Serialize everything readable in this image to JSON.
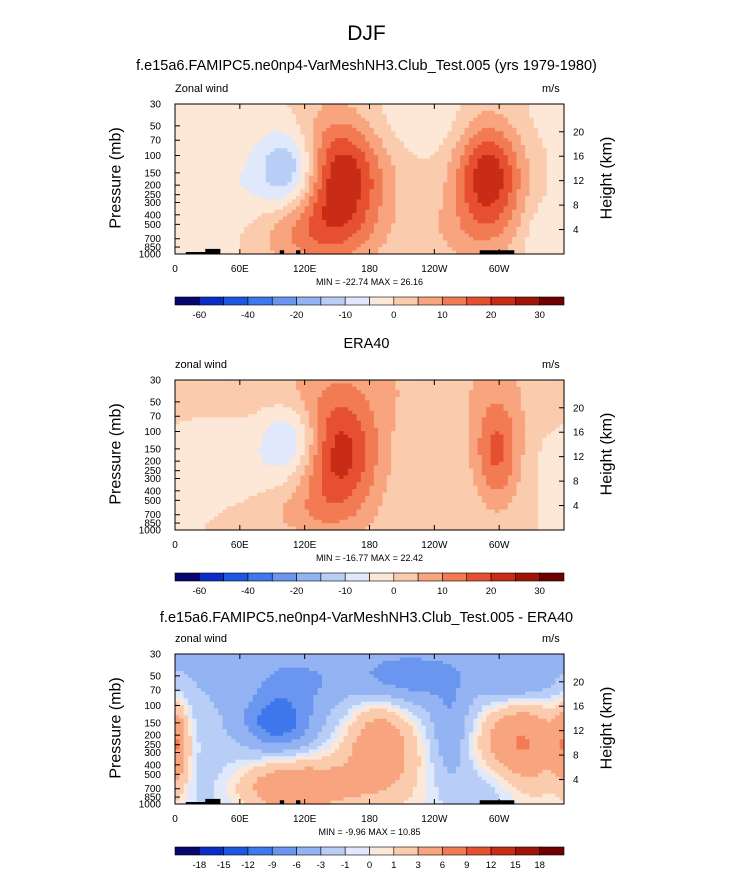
{
  "figure": {
    "title": "DJF",
    "colors": {
      "ramp": [
        "#06066e",
        "#0a2cc8",
        "#1d56e3",
        "#3f77ec",
        "#6a96f0",
        "#93b3f3",
        "#b9cef7",
        "#dfe9fb",
        "#fde8d8",
        "#fbcbae",
        "#f8a47e",
        "#f27b53",
        "#e65030",
        "#c92c16",
        "#9e1405",
        "#6e0000"
      ]
    }
  },
  "chart_data": [
    {
      "type": "heatmap",
      "title": "f.e15a6.FAMIPC5.ne0np4-VarMeshNH3.Club_Test.005 (yrs 1979-1980)",
      "left_label": "Zonal wind",
      "right_label": "m/s",
      "ylabel": "Pressure (mb)",
      "ylabel_right": "Height (km)",
      "pressure_ticks": [
        "30",
        "50",
        "70",
        "100",
        "150",
        "200",
        "250",
        "300",
        "400",
        "500",
        "700",
        "850",
        "1000"
      ],
      "height_ticks": [
        "20",
        "16",
        "12",
        "8",
        "4"
      ],
      "x_ticks": [
        "0",
        "60E",
        "120E",
        "180",
        "120W",
        "60W"
      ],
      "stats": "MIN = -22.74  MAX = 26.16",
      "colorbar": {
        "labels": [
          "-60",
          "-40",
          "-20",
          "-10",
          "0",
          "10",
          "20",
          "30"
        ],
        "levels": [
          -70,
          -60,
          -50,
          -40,
          -30,
          -20,
          -15,
          -10,
          -5,
          0,
          5,
          10,
          15,
          20,
          25,
          30,
          35
        ]
      },
      "topography": true,
      "features": [
        {
          "lon": 150,
          "p": 175,
          "value": 27,
          "sx": 30,
          "sy": 1.1
        },
        {
          "lon": 290,
          "p": 160,
          "value": 24,
          "sx": 22,
          "sy": 1.0
        },
        {
          "lon": 108,
          "p": 140,
          "value": -21,
          "sx": 22,
          "sy": 0.65
        },
        {
          "lon": 115,
          "p": 650,
          "value": 7,
          "sx": 40,
          "sy": 0.5
        },
        {
          "lon": 260,
          "p": 600,
          "value": 4,
          "sx": 30,
          "sy": 0.6
        },
        {
          "lon": 340,
          "p": 700,
          "value": -5,
          "sx": 12,
          "sy": 0.5
        },
        {
          "lon": 40,
          "p": 300,
          "value": -5,
          "sx": 30,
          "sy": 1.0
        },
        {
          "lon": 230,
          "p": 45,
          "value": -4,
          "sx": 80,
          "sy": 0.6
        }
      ]
    },
    {
      "type": "heatmap",
      "title": "ERA40",
      "left_label": "zonal wind",
      "right_label": "m/s",
      "ylabel": "Pressure (mb)",
      "ylabel_right": "Height (km)",
      "pressure_ticks": [
        "30",
        "50",
        "70",
        "100",
        "150",
        "200",
        "250",
        "300",
        "400",
        "500",
        "700",
        "850",
        "1000"
      ],
      "height_ticks": [
        "20",
        "16",
        "12",
        "8",
        "4"
      ],
      "x_ticks": [
        "0",
        "60E",
        "120E",
        "180",
        "120W",
        "60W"
      ],
      "stats": "MIN = -16.77  MAX = 22.42",
      "colorbar": {
        "labels": [
          "-60",
          "-40",
          "-20",
          "-10",
          "0",
          "10",
          "20",
          "30"
        ],
        "levels": [
          -70,
          -60,
          -50,
          -40,
          -30,
          -20,
          -15,
          -10,
          -5,
          0,
          5,
          10,
          15,
          20,
          25,
          30,
          35
        ]
      },
      "topography": false,
      "features": [
        {
          "lon": 150,
          "p": 175,
          "value": 23,
          "sx": 28,
          "sy": 1.05
        },
        {
          "lon": 298,
          "p": 165,
          "value": 16,
          "sx": 16,
          "sy": 0.9
        },
        {
          "lon": 110,
          "p": 125,
          "value": -15,
          "sx": 20,
          "sy": 0.6
        },
        {
          "lon": 110,
          "p": 700,
          "value": 4,
          "sx": 45,
          "sy": 0.4
        },
        {
          "lon": 40,
          "p": 200,
          "value": -4,
          "sx": 40,
          "sy": 0.8
        },
        {
          "lon": 200,
          "p": 32,
          "value": 4,
          "sx": 200,
          "sy": 0.8
        }
      ]
    },
    {
      "type": "heatmap",
      "title": "f.e15a6.FAMIPC5.ne0np4-VarMeshNH3.Club_Test.005 - ERA40",
      "left_label": "zonal wind",
      "right_label": "m/s",
      "ylabel": "Pressure (mb)",
      "ylabel_right": "Height (km)",
      "pressure_ticks": [
        "30",
        "50",
        "70",
        "100",
        "150",
        "200",
        "250",
        "300",
        "400",
        "500",
        "700",
        "850",
        "1000"
      ],
      "height_ticks": [
        "20",
        "16",
        "12",
        "8",
        "4"
      ],
      "x_ticks": [
        "0",
        "60E",
        "120E",
        "180",
        "120W",
        "60W"
      ],
      "stats": "MIN = -9.96  MAX = 10.85",
      "colorbar": {
        "labels": [
          "-18",
          "-15",
          "-12",
          "-9",
          "-6",
          "-3",
          "-1",
          "0",
          "1",
          "3",
          "6",
          "9",
          "12",
          "15",
          "18"
        ],
        "levels": [
          -21,
          -18,
          -15,
          -12,
          -9,
          -6,
          -3,
          -1,
          0,
          1,
          3,
          6,
          9,
          12,
          15,
          18,
          21
        ]
      },
      "topography": true,
      "features": [
        {
          "lon": 200,
          "p": 40,
          "value": -5,
          "sx": 220,
          "sy": 1.2
        },
        {
          "lon": 110,
          "p": 60,
          "value": -3,
          "sx": 20,
          "sy": 0.3
        },
        {
          "lon": 210,
          "p": 55,
          "value": -4,
          "sx": 30,
          "sy": 0.35
        },
        {
          "lon": 318,
          "p": 60,
          "value": -4,
          "sx": 20,
          "sy": 0.3
        },
        {
          "lon": 95,
          "p": 150,
          "value": -9,
          "sx": 22,
          "sy": 0.45
        },
        {
          "lon": 190,
          "p": 220,
          "value": 7,
          "sx": 25,
          "sy": 0.85
        },
        {
          "lon": 320,
          "p": 220,
          "value": 8,
          "sx": 30,
          "sy": 0.85
        },
        {
          "lon": 110,
          "p": 650,
          "value": 6,
          "sx": 40,
          "sy": 0.45
        },
        {
          "lon": 255,
          "p": 200,
          "value": -4,
          "sx": 12,
          "sy": 0.8
        },
        {
          "lon": 290,
          "p": 700,
          "value": -3,
          "sx": 25,
          "sy": 0.6
        },
        {
          "lon": 30,
          "p": 600,
          "value": -2,
          "sx": 30,
          "sy": 0.8
        },
        {
          "lon": 2,
          "p": 250,
          "value": 5,
          "sx": 8,
          "sy": 0.8
        }
      ]
    }
  ]
}
